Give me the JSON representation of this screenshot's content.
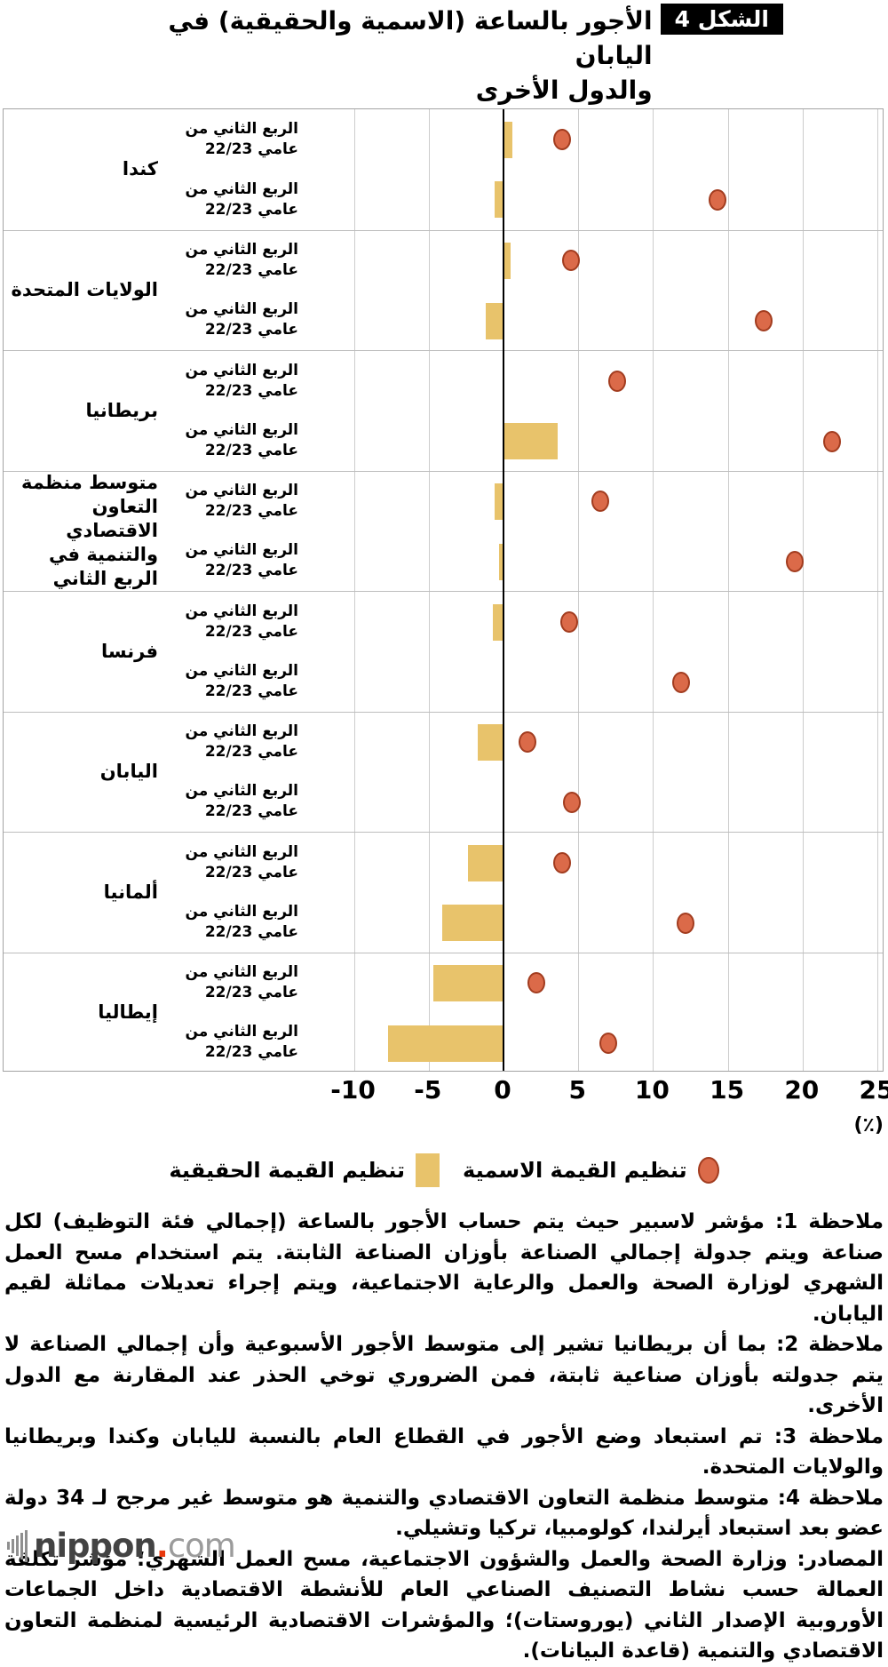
{
  "figure": {
    "badge": "الشكل 4",
    "title_line1": "الأجور بالساعة (الاسمية والحقيقية) في اليابان",
    "title_line2": "والدول الأخرى"
  },
  "chart_data": {
    "type": "bar",
    "orientation": "horizontal",
    "title": "الأجور بالساعة (الاسمية والحقيقية) في اليابان والدول الأخرى",
    "unit": "٪",
    "x_axis": {
      "ticks": [
        -10,
        -5,
        0,
        5,
        10,
        15,
        20,
        25
      ],
      "min": -13,
      "max": 25.6,
      "label": "(٪)",
      "grid": true
    },
    "row_label": "الربع الثاني من عامي 22/23",
    "legend": [
      {
        "label": "تنظيم القيمة الاسمية",
        "marker": "dot",
        "color": "#db6a49"
      },
      {
        "label": "تنظيم القيمة الحقيقية",
        "marker": "square",
        "color": "#e8c36b"
      }
    ],
    "series_note": "nominal = red dot, real = yellow bar, values in percent",
    "groups": [
      {
        "country": "كندا",
        "rows": [
          {
            "nominal": 3.9,
            "real": 0.6
          },
          {
            "nominal": 14.3,
            "real": -0.6
          }
        ]
      },
      {
        "country": "الولايات المتحدة",
        "rows": [
          {
            "nominal": 4.5,
            "real": 0.5
          },
          {
            "nominal": 17.4,
            "real": -1.2
          }
        ]
      },
      {
        "country": "بريطانيا",
        "rows": [
          {
            "nominal": 7.6,
            "real": 0.0
          },
          {
            "nominal": 22.0,
            "real": 3.6
          }
        ]
      },
      {
        "country": "متوسط منظمة التعاون الاقتصادي والتنمية في الربع الثاني",
        "rows": [
          {
            "nominal": 6.5,
            "real": -0.6
          },
          {
            "nominal": 19.5,
            "real": -0.3
          }
        ]
      },
      {
        "country": "فرنسا",
        "rows": [
          {
            "nominal": 4.4,
            "real": -0.7
          },
          {
            "nominal": 11.9,
            "real": 0.0
          }
        ]
      },
      {
        "country": "اليابان",
        "rows": [
          {
            "nominal": 1.6,
            "real": -1.7
          },
          {
            "nominal": 4.6,
            "real": 0.0
          }
        ]
      },
      {
        "country": "ألمانيا",
        "rows": [
          {
            "nominal": 3.9,
            "real": -2.4
          },
          {
            "nominal": 12.2,
            "real": -4.1
          }
        ]
      },
      {
        "country": "إيطاليا",
        "rows": [
          {
            "nominal": 2.2,
            "real": -4.7
          },
          {
            "nominal": 7.0,
            "real": -7.7
          }
        ]
      }
    ],
    "colors": {
      "bar": "#e8c36b",
      "dot_fill": "#db6a49",
      "dot_border": "#a23c1f",
      "grid": "#cccccc",
      "zero_line": "#000000"
    }
  },
  "notes": [
    "ملاحظة 1: مؤشر لاسبير حيث يتم حساب الأجور بالساعة (إجمالي فئة التوظيف) لكل صناعة ويتم جدولة إجمالي الصناعة بأوزان الصناعة الثابتة. يتم استخدام مسح العمل الشهري لوزارة الصحة والعمل والرعاية الاجتماعية، ويتم إجراء تعديلات مماثلة لقيم اليابان.",
    "ملاحظة 2: بما أن بريطانيا تشير إلى متوسط الأجور الأسبوعية وأن إجمالي الصناعة لا يتم جدولته بأوزان صناعية ثابتة، فمن الضروري توخي الحذر عند المقارنة مع الدول الأخرى.",
    "ملاحظة 3: تم استبعاد وضع الأجور في القطاع العام بالنسبة لليابان وكندا وبريطانيا والولايات المتحدة.",
    "ملاحظة 4: متوسط منظمة التعاون الاقتصادي والتنمية هو متوسط غير مرجح لـ 34 دولة عضو بعد استبعاد أيرلندا، كولومبيا، تركيا وتشيلي.",
    "المصادر: وزارة الصحة والعمل والشؤون الاجتماعية، مسح العمل الشهري؛ مؤشر تكلفة العمالة حسب نشاط التصنيف الصناعي العام للأنشطة الاقتصادية داخل الجماعات الأوروبية الإصدار الثاني (يوروستات)؛ والمؤشرات الاقتصادية الرئيسية لمنظمة التعاون الاقتصادي والتنمية (قاعدة البيانات)."
  ],
  "footer": {
    "logo_nippon": "nippon",
    "logo_dot": ".",
    "logo_com": "com"
  }
}
